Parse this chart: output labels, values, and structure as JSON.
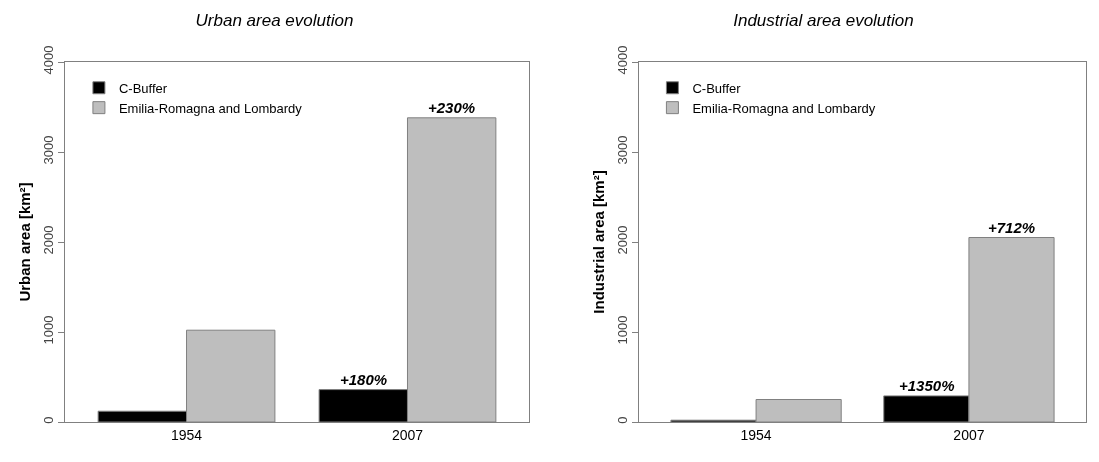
{
  "chart_data": [
    {
      "type": "bar",
      "title": "Urban area evolution",
      "ylabel": "Urban area [km²]",
      "categories": [
        "1954",
        "2007"
      ],
      "series": [
        {
          "name": "C-Buffer",
          "color": "#000000",
          "values": [
            120,
            360
          ]
        },
        {
          "name": "Emilia-Romagna and Lombardy",
          "color": "#bebebe",
          "values": [
            1020,
            3380
          ]
        }
      ],
      "annotations": [
        {
          "text": "+180%",
          "x": "2007",
          "y": 360
        },
        {
          "text": "+230%",
          "x": "2007",
          "y": 3380
        }
      ],
      "ylim": [
        0,
        4000
      ],
      "yticks": [
        0,
        1000,
        2000,
        3000,
        4000
      ],
      "grid": false,
      "legend": "top left"
    },
    {
      "type": "bar",
      "title": "Industrial area evolution",
      "ylabel": "Industrial area [km²]",
      "categories": [
        "1954",
        "2007"
      ],
      "series": [
        {
          "name": "C-Buffer",
          "color": "#000000",
          "values": [
            20,
            290
          ]
        },
        {
          "name": "Emilia-Romagna and Lombardy",
          "color": "#bebebe",
          "values": [
            250,
            2050
          ]
        }
      ],
      "annotations": [
        {
          "text": "+1350%",
          "x": "2007",
          "y": 290
        },
        {
          "text": "+712%",
          "x": "2007",
          "y": 2050
        }
      ],
      "ylim": [
        0,
        4000
      ],
      "yticks": [
        0,
        1000,
        2000,
        3000,
        4000
      ],
      "grid": false,
      "legend": "top left"
    }
  ]
}
